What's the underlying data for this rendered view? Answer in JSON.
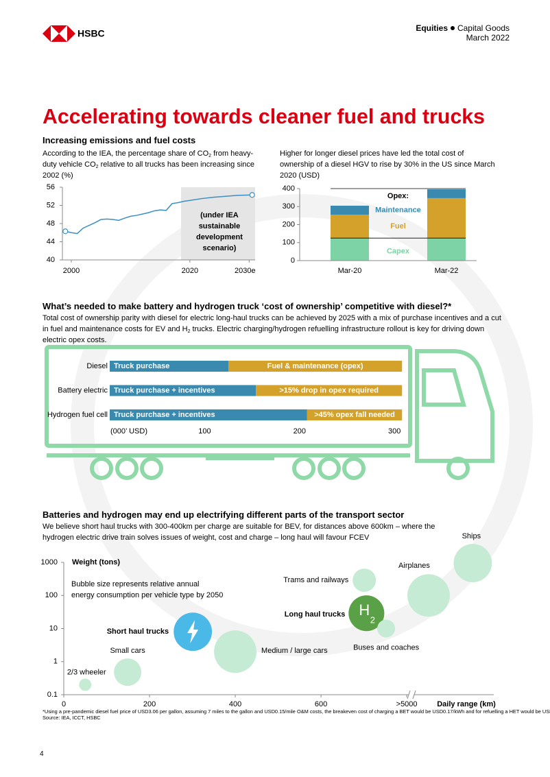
{
  "header": {
    "brand": "HSBC",
    "division": "Equities",
    "sector": "Capital Goods",
    "date": "March 2022"
  },
  "title": "Accelerating towards cleaner fuel and trucks",
  "sections": [
    {
      "heading": "Increasing emissions and fuel costs"
    },
    {
      "heading": "What’s needed to make battery and hydrogen truck ‘cost of ownership’ competitive with diesel?*",
      "text": [
        "Total cost of ownership parity with diesel for electric long-haul trucks can be achieved by 2025 with a mix of purchase incentives and a cut in fuel and maintenance costs for EV and H",
        "2",
        " trucks. Electric charging/hydrogen refuelling infrastructure rollout is key for driving down electric opex costs."
      ]
    },
    {
      "heading": "Batteries and hydrogen may end up electrifying different parts of the transport sector",
      "text": [
        "We believe short haul trucks with 300-400km per charge are suitable for BEV, for distances above 600km – where the hydrogen electric drive train solves issues of weight, cost and charge – long haul will favour FCEV"
      ]
    }
  ],
  "chart_data": [
    {
      "type": "line",
      "subtitle": [
        "According to the IEA, the percentage share of CO",
        "2",
        " from heavy-duty vehicle CO",
        "2",
        " relative to all trucks has been increasing since 2002 (%)"
      ],
      "x": [
        1999,
        2000,
        2001,
        2002,
        2003,
        2004,
        2005,
        2006,
        2007,
        2008,
        2009,
        2010,
        2011,
        2012,
        2013,
        2014,
        2015,
        2016,
        2017,
        2018,
        2019,
        2020,
        2022,
        2024,
        2026,
        2028,
        2030.5
      ],
      "values": [
        46.3,
        46.0,
        45.8,
        47.0,
        47.6,
        48.2,
        48.9,
        49.0,
        48.9,
        48.7,
        49.2,
        49.6,
        49.8,
        50.1,
        50.4,
        50.8,
        51.0,
        50.9,
        52.4,
        52.6,
        52.9,
        53.1,
        53.5,
        53.8,
        54.0,
        54.2,
        54.3
      ],
      "color": "#3b8ec4",
      "xlim": [
        1998.5,
        2031
      ],
      "xticks": [
        2000,
        2020,
        {
          "value": 2030,
          "label": "2030e"
        }
      ],
      "ylim": [
        40,
        56
      ],
      "yticks": [
        40,
        44,
        48,
        52,
        56
      ],
      "shade": {
        "from": 2018.5,
        "to": 2031,
        "label": [
          "(under IEA",
          "sustainable",
          "development",
          "scenario)"
        ]
      }
    },
    {
      "type": "stacked_bar",
      "subtitle": "Higher for longer diesel prices have led the total cost of ownership of a diesel HGV to rise by 30% in the US since March 2020 (USD)",
      "categories": [
        "Mar-20",
        "Mar-22"
      ],
      "series": [
        {
          "name": "Capex",
          "color": "#7dd3a6",
          "values": [
            125,
            125
          ]
        },
        {
          "name": "Fuel",
          "color": "#d4a12a",
          "values": [
            130,
            222
          ]
        },
        {
          "name": "Maintenance",
          "color": "#3a8ab0",
          "values": [
            50,
            49
          ]
        }
      ],
      "opex_label": "Opex:",
      "ylim": [
        0,
        400
      ],
      "yticks": [
        0,
        100,
        200,
        300,
        400
      ]
    },
    {
      "type": "hbar_stacked",
      "categories": [
        "Diesel",
        "Battery electric",
        "Hydrogen fuel cell"
      ],
      "series": [
        {
          "color": "#3a8ab0",
          "values": [
            125,
            154,
            208
          ],
          "labels": [
            "Truck purchase",
            "Truck purchase + incentives",
            "Truck purchase + incentives"
          ]
        },
        {
          "color": "#d4a12a",
          "values": [
            183,
            154,
            100
          ],
          "labels": [
            "Fuel & maintenance (opex)",
            ">15% drop in opex required",
            ">45% opex fall needed"
          ]
        }
      ],
      "x_label": "(000’ USD)",
      "xlim": [
        0,
        310
      ],
      "xticks": [
        100,
        200,
        300
      ]
    },
    {
      "type": "bubble",
      "labels": [
        "2/3 wheeler",
        "Small cars",
        "Short haul trucks",
        "Medium / large cars",
        "Trams and railways",
        "Long haul trucks",
        "Buses and coaches",
        "Airplanes",
        "Ships"
      ],
      "x": [
        50,
        149,
        301,
        400,
        701,
        706,
        752,
        851,
        954
      ],
      "y": [
        0.2,
        0.48,
        8,
        2,
        288,
        29,
        10,
        100,
        950
      ],
      "size": [
        8,
        40,
        78,
        96,
        29,
        68,
        17,
        96,
        78
      ],
      "colors": [
        "#c6ebd4",
        "#c6ebd4",
        "#4bb9e8",
        "#c6ebd4",
        "#c6ebd4",
        "#5aa046",
        "#c6ebd4",
        "#c6ebd4",
        "#c6ebd4"
      ],
      "bubble_icon_text": [
        "H",
        "2"
      ],
      "y_label": "Weight (tons)",
      "x_label": "Daily range (km)",
      "note": "Bubble size represents relative annual energy consumption per vehicle type by 2050",
      "log_y": true,
      "xlim": [
        0,
        1003
      ],
      "xticks": [
        0,
        200,
        400,
        600,
        {
          "value": 800,
          "label": ">5000"
        }
      ],
      "ylim": [
        0.1,
        1000
      ],
      "yticks": [
        0.1,
        1,
        10,
        100,
        1000
      ]
    }
  ],
  "footnote": "*Using a pre-pandemic diesel fuel price of USD3.06 per gallon, assuming 7 miles to the gallon and USD0.15/mile O&M costs, the breakeven cost of charging a BET would be USD0.17/kWh and for refuelling a HET would be USD1.55/kg",
  "source": "Source: IEA, ICCT, HSBC",
  "page_number": "4"
}
